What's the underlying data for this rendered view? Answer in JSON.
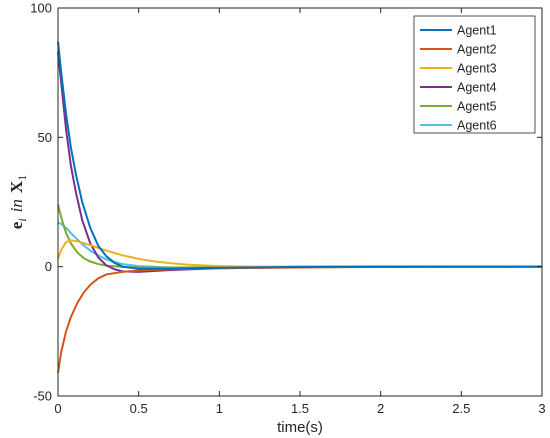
{
  "chart_data": {
    "type": "line",
    "title": "",
    "xlabel": "time(s)",
    "ylabel": {
      "e": "e",
      "i": "i",
      "in": "in",
      "X": "X",
      "sub": "1"
    },
    "xlim": [
      0,
      3
    ],
    "ylim": [
      -50,
      100
    ],
    "xticks": [
      "0",
      "0.5",
      "1",
      "1.5",
      "2",
      "2.5",
      "3"
    ],
    "yticks": [
      "-50",
      "0",
      "50",
      "100"
    ],
    "grid": false,
    "legend_position": "top-right",
    "series": [
      {
        "name": "Agent1",
        "color": "#0072BD",
        "points": [
          [
            0,
            87
          ],
          [
            0.02,
            75
          ],
          [
            0.05,
            59
          ],
          [
            0.08,
            46
          ],
          [
            0.11,
            36
          ],
          [
            0.15,
            25
          ],
          [
            0.2,
            15
          ],
          [
            0.25,
            8
          ],
          [
            0.3,
            4
          ],
          [
            0.35,
            1.5
          ],
          [
            0.4,
            0
          ],
          [
            0.5,
            -0.8
          ],
          [
            0.7,
            -0.8
          ],
          [
            1.0,
            -0.4
          ],
          [
            1.5,
            -0.1
          ],
          [
            2.0,
            0
          ],
          [
            3.0,
            0
          ]
        ]
      },
      {
        "name": "Agent2",
        "color": "#D95319",
        "points": [
          [
            0,
            -41
          ],
          [
            0.02,
            -33
          ],
          [
            0.05,
            -25
          ],
          [
            0.08,
            -19.5
          ],
          [
            0.12,
            -14
          ],
          [
            0.16,
            -10
          ],
          [
            0.2,
            -7
          ],
          [
            0.25,
            -4.5
          ],
          [
            0.3,
            -3
          ],
          [
            0.4,
            -2
          ],
          [
            0.5,
            -1.5
          ],
          [
            0.7,
            -1
          ],
          [
            1.0,
            -0.6
          ],
          [
            1.5,
            -0.3
          ],
          [
            2.0,
            -0.1
          ],
          [
            3.0,
            0
          ]
        ]
      },
      {
        "name": "Agent3",
        "color": "#EDB120",
        "points": [
          [
            0,
            3
          ],
          [
            0.02,
            6.5
          ],
          [
            0.05,
            9.5
          ],
          [
            0.08,
            10.2
          ],
          [
            0.12,
            9.8
          ],
          [
            0.2,
            8.3
          ],
          [
            0.3,
            6.2
          ],
          [
            0.4,
            4.4
          ],
          [
            0.5,
            3
          ],
          [
            0.6,
            2
          ],
          [
            0.7,
            1.3
          ],
          [
            0.8,
            0.8
          ],
          [
            1.0,
            0.2
          ],
          [
            1.2,
            0
          ],
          [
            1.5,
            -0.1
          ],
          [
            2.0,
            0
          ],
          [
            3.0,
            0
          ]
        ]
      },
      {
        "name": "Agent4",
        "color": "#7E2F8E",
        "points": [
          [
            0,
            83
          ],
          [
            0.02,
            71
          ],
          [
            0.05,
            53
          ],
          [
            0.08,
            39
          ],
          [
            0.11,
            29
          ],
          [
            0.15,
            18
          ],
          [
            0.2,
            9
          ],
          [
            0.25,
            3.5
          ],
          [
            0.3,
            0.5
          ],
          [
            0.35,
            -1
          ],
          [
            0.4,
            -1.8
          ],
          [
            0.5,
            -2
          ],
          [
            0.7,
            -1.3
          ],
          [
            1.0,
            -0.6
          ],
          [
            1.5,
            -0.2
          ],
          [
            2.0,
            0
          ],
          [
            3.0,
            0
          ]
        ]
      },
      {
        "name": "Agent5",
        "color": "#77AC30",
        "points": [
          [
            0,
            24
          ],
          [
            0.02,
            19
          ],
          [
            0.05,
            13
          ],
          [
            0.08,
            9
          ],
          [
            0.12,
            5.5
          ],
          [
            0.16,
            3.3
          ],
          [
            0.2,
            2
          ],
          [
            0.25,
            1
          ],
          [
            0.3,
            0.4
          ],
          [
            0.4,
            -0.1
          ],
          [
            0.5,
            -0.3
          ],
          [
            0.7,
            -0.3
          ],
          [
            1.0,
            -0.2
          ],
          [
            1.5,
            0
          ],
          [
            3.0,
            0
          ]
        ]
      },
      {
        "name": "Agent6",
        "color": "#4DBEEE",
        "points": [
          [
            0,
            17
          ],
          [
            0.02,
            16.5
          ],
          [
            0.05,
            15
          ],
          [
            0.08,
            13
          ],
          [
            0.12,
            10.5
          ],
          [
            0.16,
            8.2
          ],
          [
            0.2,
            6.2
          ],
          [
            0.25,
            4.3
          ],
          [
            0.3,
            2.8
          ],
          [
            0.35,
            1.8
          ],
          [
            0.4,
            1
          ],
          [
            0.5,
            0.2
          ],
          [
            0.7,
            -0.3
          ],
          [
            1.0,
            -0.3
          ],
          [
            1.5,
            -0.1
          ],
          [
            2.0,
            0
          ],
          [
            3.0,
            0
          ]
        ]
      }
    ]
  }
}
